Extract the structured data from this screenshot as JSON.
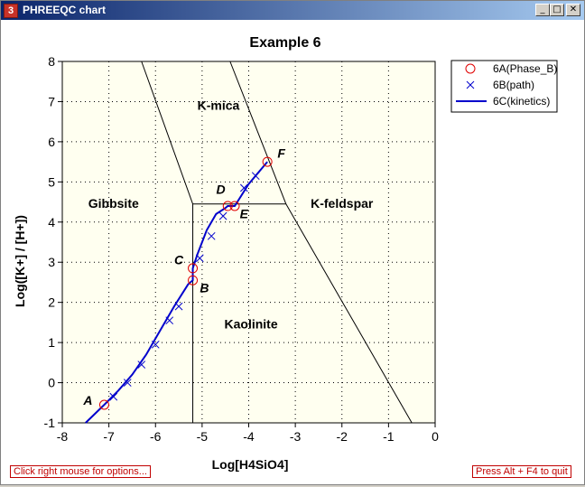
{
  "window": {
    "title": "PHREEQC chart",
    "icon_label": "3",
    "min_glyph": "_",
    "max_glyph": "□",
    "close_glyph": "✕"
  },
  "status": {
    "left": "Click right mouse for options...",
    "right": "Press Alt + F4 to quit"
  },
  "colors": {
    "plot_bg": "#fffff0",
    "series_line": "#0000cc",
    "phase_marker": "#e00000",
    "path_marker": "#0000cc"
  },
  "chart_data": {
    "type": "line",
    "title": "Example 6",
    "xlabel": "Log[H4SiO4]",
    "ylabel": "Log([K+] / [H+])",
    "xlim": [
      -8,
      0
    ],
    "ylim": [
      -1,
      8
    ],
    "xticks": [
      "-8",
      "-7",
      "-6",
      "-5",
      "-4",
      "-3",
      "-2",
      "-1",
      "0"
    ],
    "yticks": [
      "-1",
      "0",
      "1",
      "2",
      "3",
      "4",
      "5",
      "6",
      "7",
      "8"
    ],
    "grid": true,
    "legend_position": "right",
    "series": [
      {
        "name": "6A(Phase_B)",
        "marker": "circle",
        "x": [
          -7.1,
          -5.2,
          -5.2,
          -4.45,
          -4.3,
          -3.6
        ],
        "y": [
          -0.55,
          2.55,
          2.85,
          4.4,
          4.4,
          5.5
        ]
      },
      {
        "name": "6B(path)",
        "marker": "x",
        "x": [
          -6.9,
          -6.6,
          -6.3,
          -6.0,
          -5.7,
          -5.5,
          -5.05,
          -4.8,
          -4.55,
          -4.1,
          -3.85
        ],
        "y": [
          -0.35,
          0.0,
          0.45,
          0.95,
          1.55,
          1.9,
          3.1,
          3.65,
          4.15,
          4.85,
          5.15
        ]
      },
      {
        "name": "6C(kinetics)",
        "marker": "none",
        "x": [
          -7.5,
          -7.1,
          -6.8,
          -6.5,
          -6.2,
          -5.9,
          -5.6,
          -5.3,
          -5.2,
          -5.2,
          -5.1,
          -4.9,
          -4.7,
          -4.5,
          -4.45,
          -4.3,
          -4.0,
          -3.6
        ],
        "y": [
          -1.0,
          -0.55,
          -0.2,
          0.2,
          0.7,
          1.3,
          1.9,
          2.45,
          2.55,
          2.85,
          3.2,
          3.8,
          4.2,
          4.35,
          4.4,
          4.4,
          4.95,
          5.5
        ]
      }
    ],
    "boundaries": [
      {
        "x": [
          -6.3,
          -5.2,
          -5.2
        ],
        "y": [
          8,
          4.45,
          -1
        ]
      },
      {
        "x": [
          -5.2,
          -3.2
        ],
        "y": [
          4.45,
          4.45
        ]
      },
      {
        "x": [
          -4.4,
          -3.2
        ],
        "y": [
          8,
          4.45
        ]
      },
      {
        "x": [
          -3.2,
          -0.5
        ],
        "y": [
          4.45,
          -1
        ]
      }
    ],
    "region_labels": [
      {
        "text": "K-mica",
        "x": -4.65,
        "y": 6.8
      },
      {
        "text": "Gibbsite",
        "x": -6.9,
        "y": 4.35
      },
      {
        "text": "K-feldspar",
        "x": -2.0,
        "y": 4.35
      },
      {
        "text": "Kaolinite",
        "x": -3.95,
        "y": 1.35
      }
    ],
    "point_labels": [
      {
        "text": "A",
        "x": -7.45,
        "y": -0.55
      },
      {
        "text": "B",
        "x": -4.95,
        "y": 2.25
      },
      {
        "text": "C",
        "x": -5.5,
        "y": 2.95
      },
      {
        "text": "D",
        "x": -4.6,
        "y": 4.7
      },
      {
        "text": "E",
        "x": -4.1,
        "y": 4.1
      },
      {
        "text": "F",
        "x": -3.3,
        "y": 5.6
      }
    ]
  }
}
